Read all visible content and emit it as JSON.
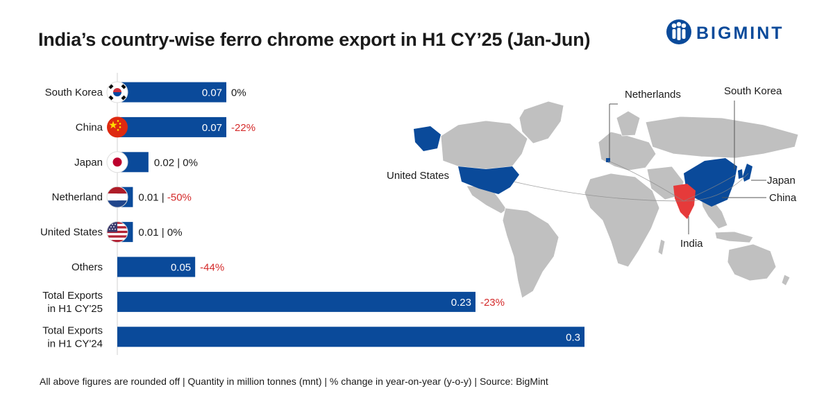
{
  "title": "India’s country-wise ferro chrome export in H1 CY’25 (Jan-Jun)",
  "brand": "BIGMINT",
  "footnote": "All above figures are rounded off | Quantity in million tonnes (mnt) | % change in year-on-year (y-o-y) | Source: BigMint",
  "colors": {
    "bar": "#0a4a9a",
    "negative": "#d42a2a",
    "india": "#e63a3a",
    "land": "#c0c0c0"
  },
  "chart_data": {
    "type": "bar",
    "orientation": "horizontal",
    "unit": "mnt",
    "categories": [
      [
        "South Korea"
      ],
      [
        "China"
      ],
      [
        "Japan"
      ],
      [
        "Netherland"
      ],
      [
        "United States"
      ],
      [
        "Others"
      ],
      [
        "Total Exports",
        "in H1 CY'25"
      ],
      [
        "Total Exports",
        "in H1 CY'24"
      ]
    ],
    "values": [
      0.07,
      0.07,
      0.02,
      0.01,
      0.01,
      0.05,
      0.23,
      0.3
    ],
    "value_labels": [
      "0.07",
      "0.07",
      "0.02",
      "0.01",
      "0.01",
      "0.05",
      "0.23",
      "0.3"
    ],
    "change_labels": [
      "0%",
      "-22%",
      "0%",
      "-50%",
      "0%",
      "-44%",
      "-23%",
      ""
    ],
    "flags": [
      "south-korea",
      "china",
      "japan",
      "netherlands",
      "united-states",
      "",
      "",
      ""
    ],
    "xlim": [
      0,
      0.3
    ]
  },
  "map": {
    "labels": [
      "Netherlands",
      "South Korea",
      "United States",
      "Japan",
      "China",
      "India"
    ]
  }
}
